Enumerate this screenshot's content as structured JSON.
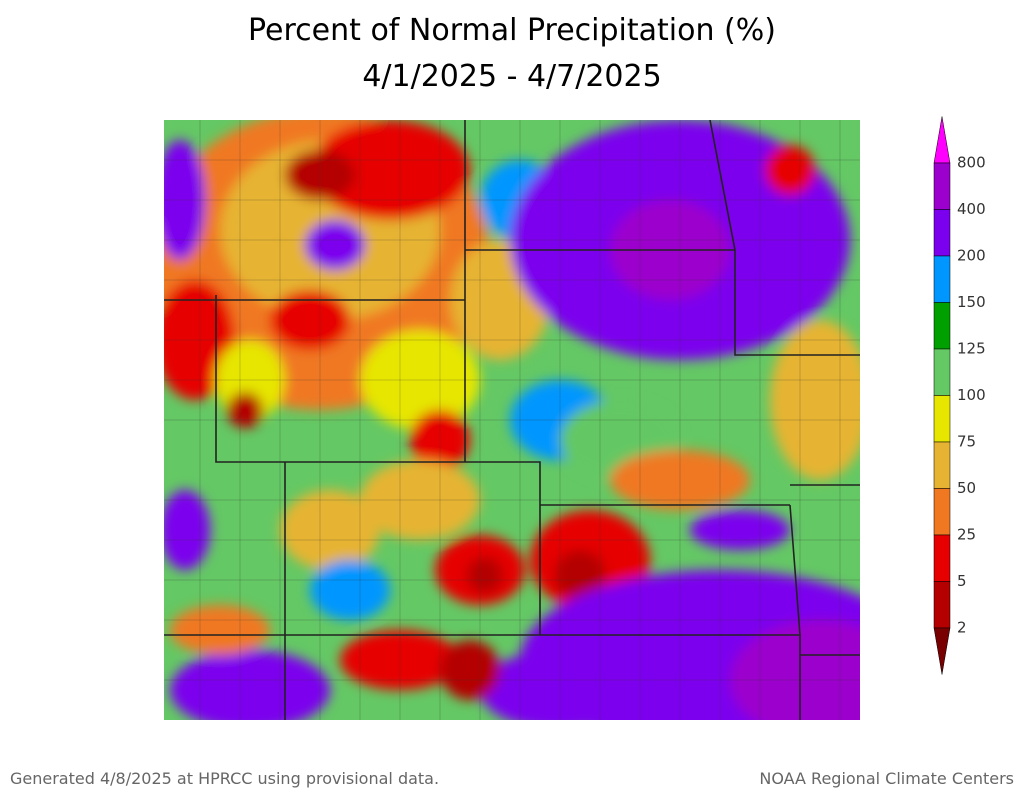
{
  "header": {
    "title": "Percent of Normal Precipitation (%)",
    "subtitle": "4/1/2025 - 4/7/2025"
  },
  "legend": {
    "labels": [
      "800",
      "400",
      "200",
      "150",
      "125",
      "100",
      "75",
      "50",
      "25",
      "5",
      "2"
    ],
    "colors": [
      "#ff00ff",
      "#9c00cc",
      "#7b00ee",
      "#0096ff",
      "#00a000",
      "#64c864",
      "#e6e600",
      "#e6b432",
      "#f07820",
      "#e60000",
      "#b40000",
      "#780000"
    ]
  },
  "footer": {
    "left": "Generated 4/8/2025 at HPRCC using provisional data.",
    "right": "NOAA Regional Climate Centers"
  }
}
